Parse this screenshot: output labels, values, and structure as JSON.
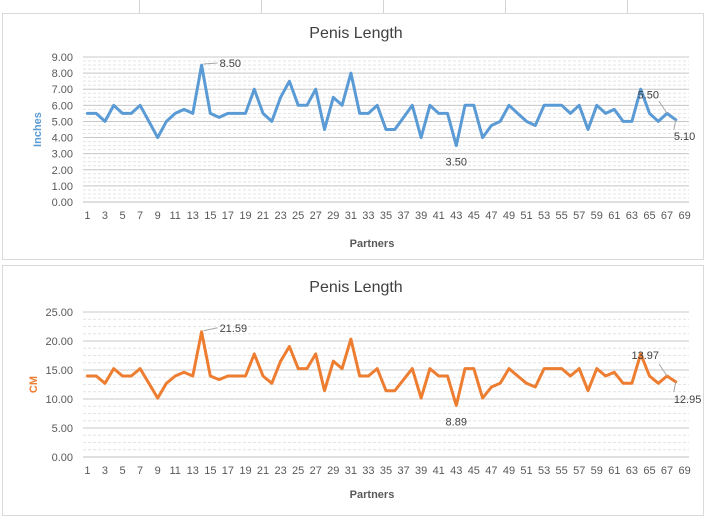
{
  "chart_data": [
    {
      "type": "line",
      "title": "Penis Length",
      "xlabel": "Partners",
      "ylabel": "Inches",
      "ylim": [
        0,
        9
      ],
      "ytick_labels": [
        "0.00",
        "1.00",
        "2.00",
        "3.00",
        "4.00",
        "5.00",
        "6.00",
        "7.00",
        "8.00",
        "9.00"
      ],
      "xtick_labels": [
        "1",
        "3",
        "5",
        "7",
        "9",
        "11",
        "13",
        "15",
        "17",
        "19",
        "21",
        "23",
        "25",
        "27",
        "29",
        "31",
        "33",
        "35",
        "37",
        "39",
        "41",
        "43",
        "45",
        "47",
        "49",
        "51",
        "53",
        "55",
        "57",
        "59",
        "61",
        "63",
        "65",
        "67",
        "69"
      ],
      "grid": true,
      "legend": "none",
      "color": "#5b9bd5",
      "ylabel_color": "#5b9bd5",
      "x": [
        1,
        2,
        3,
        4,
        5,
        6,
        7,
        8,
        9,
        10,
        11,
        12,
        13,
        14,
        15,
        16,
        17,
        18,
        19,
        20,
        21,
        22,
        23,
        24,
        25,
        26,
        27,
        28,
        29,
        30,
        31,
        32,
        33,
        34,
        35,
        36,
        37,
        38,
        39,
        40,
        41,
        42,
        43,
        44,
        45,
        46,
        47,
        48,
        49,
        50,
        51,
        52,
        53,
        54,
        55,
        56,
        57,
        58,
        59,
        60,
        61,
        62,
        63,
        64,
        65,
        66,
        67,
        68
      ],
      "values": [
        5.5,
        5.5,
        5.0,
        6.0,
        5.5,
        5.5,
        6.0,
        5.0,
        4.0,
        5.0,
        5.5,
        5.75,
        5.5,
        8.5,
        5.5,
        5.25,
        5.5,
        5.5,
        5.5,
        7.0,
        5.5,
        5.0,
        6.5,
        7.5,
        6.0,
        6.0,
        7.0,
        4.5,
        6.5,
        6.0,
        8.0,
        5.5,
        5.5,
        6.0,
        4.5,
        4.5,
        5.25,
        6.0,
        4.0,
        6.0,
        5.5,
        5.5,
        3.5,
        6.0,
        6.0,
        4.0,
        4.75,
        5.0,
        6.0,
        5.5,
        5.0,
        4.75,
        6.0,
        6.0,
        6.0,
        5.5,
        6.0,
        4.5,
        6.0,
        5.5,
        5.75,
        5.0,
        5.0,
        7.0,
        5.5,
        5.0,
        5.5,
        5.1
      ],
      "annotations": [
        {
          "x": 14,
          "value": 8.5,
          "text": "8.50"
        },
        {
          "x": 43,
          "value": 3.5,
          "text": "3.50"
        },
        {
          "x": 67,
          "value": 5.5,
          "text": "5.50"
        },
        {
          "x": 68,
          "value": 5.1,
          "text": "5.10"
        }
      ]
    },
    {
      "type": "line",
      "title": "Penis Length",
      "xlabel": "Partners",
      "ylabel": "CM",
      "ylim": [
        0,
        25
      ],
      "ytick_labels": [
        "0.00",
        "5.00",
        "10.00",
        "15.00",
        "20.00",
        "25.00"
      ],
      "xtick_labels": [
        "1",
        "3",
        "5",
        "7",
        "9",
        "11",
        "13",
        "15",
        "17",
        "19",
        "21",
        "23",
        "25",
        "27",
        "29",
        "31",
        "33",
        "35",
        "37",
        "39",
        "41",
        "43",
        "45",
        "47",
        "49",
        "51",
        "53",
        "55",
        "57",
        "59",
        "61",
        "63",
        "65",
        "67",
        "69"
      ],
      "grid": true,
      "legend": "none",
      "color": "#ed7d31",
      "ylabel_color": "#ed7d31",
      "x": [
        1,
        2,
        3,
        4,
        5,
        6,
        7,
        8,
        9,
        10,
        11,
        12,
        13,
        14,
        15,
        16,
        17,
        18,
        19,
        20,
        21,
        22,
        23,
        24,
        25,
        26,
        27,
        28,
        29,
        30,
        31,
        32,
        33,
        34,
        35,
        36,
        37,
        38,
        39,
        40,
        41,
        42,
        43,
        44,
        45,
        46,
        47,
        48,
        49,
        50,
        51,
        52,
        53,
        54,
        55,
        56,
        57,
        58,
        59,
        60,
        61,
        62,
        63,
        64,
        65,
        66,
        67,
        68
      ],
      "values": [
        13.97,
        13.97,
        12.7,
        15.24,
        13.97,
        13.97,
        15.24,
        12.7,
        10.16,
        12.7,
        13.97,
        14.61,
        13.97,
        21.59,
        13.97,
        13.34,
        13.97,
        13.97,
        13.97,
        17.78,
        13.97,
        12.7,
        16.51,
        19.05,
        15.24,
        15.24,
        17.78,
        11.43,
        16.51,
        15.24,
        20.32,
        13.97,
        13.97,
        15.24,
        11.43,
        11.43,
        13.34,
        15.24,
        10.16,
        15.24,
        13.97,
        13.97,
        8.89,
        15.24,
        15.24,
        10.16,
        12.07,
        12.7,
        15.24,
        13.97,
        12.7,
        12.07,
        15.24,
        15.24,
        15.24,
        13.97,
        15.24,
        11.43,
        15.24,
        13.97,
        14.61,
        12.7,
        12.7,
        17.78,
        13.97,
        12.7,
        13.97,
        12.95
      ],
      "annotations": [
        {
          "x": 14,
          "value": 21.59,
          "text": "21.59"
        },
        {
          "x": 43,
          "value": 8.89,
          "text": "8.89"
        },
        {
          "x": 67,
          "value": 13.97,
          "text": "13.97"
        },
        {
          "x": 68,
          "value": 12.95,
          "text": "12.95"
        }
      ]
    }
  ]
}
